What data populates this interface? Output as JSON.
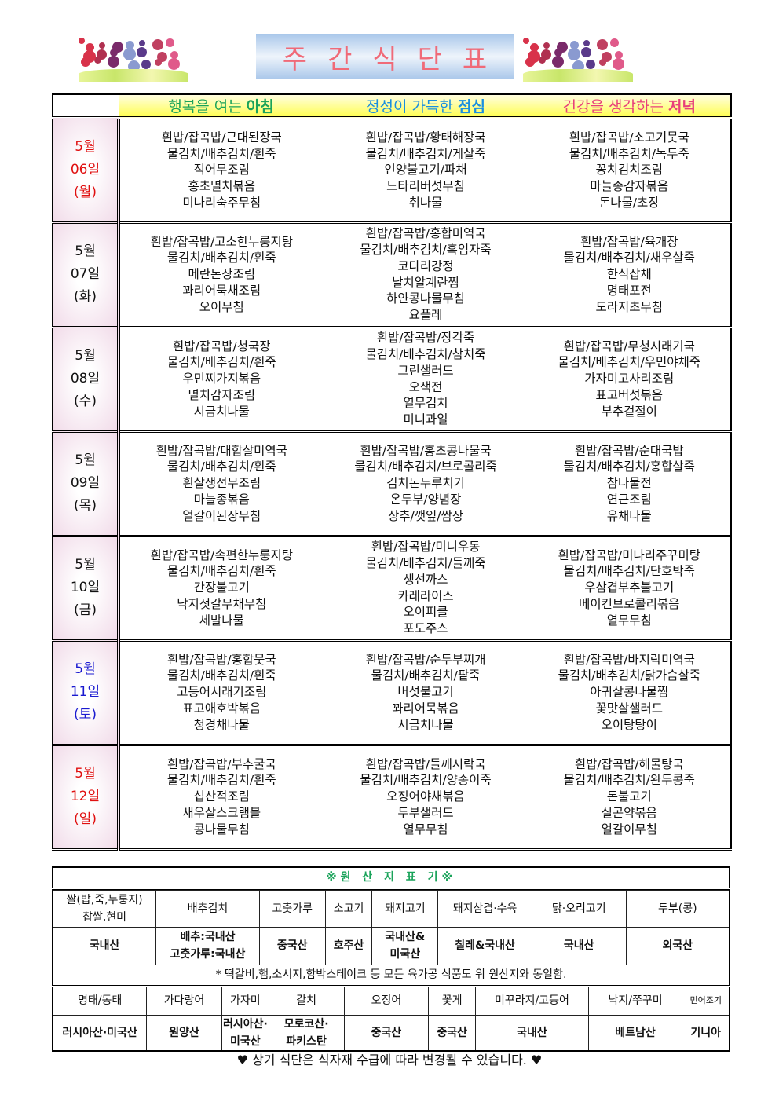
{
  "title": "주간식단표",
  "title_chars": [
    "주",
    "간",
    "식",
    "단",
    "표"
  ],
  "meals": [
    {
      "prefix": "행복을 여는 ",
      "bold": "아침",
      "color": "#1aa35a"
    },
    {
      "prefix": "정성이 가득한 ",
      "bold": "점심",
      "color": "#1a8fe0"
    },
    {
      "prefix": "건강을 생각하는 ",
      "bold": "저녁",
      "color": "#e8407a"
    }
  ],
  "days": [
    {
      "month": "5월",
      "date": "06일",
      "weekday": "(월)",
      "color": "#e01010",
      "meals": [
        [
          "흰밥/잡곡밥/근대된장국",
          "물김치/배추김치/흰죽",
          "적어무조림",
          "홍초멸치볶음",
          "미나리숙주무침"
        ],
        [
          "흰밥/잡곡밥/황태해장국",
          "물김치/배추김치/게살죽",
          "언양불고기/파채",
          "느타리버섯무침",
          "취나물"
        ],
        [
          "흰밥/잡곡밥/소고기뭇국",
          "물김치/배추김치/녹두죽",
          "꽁치김치조림",
          "마늘종감자볶음",
          "돈나물/초장"
        ]
      ]
    },
    {
      "month": "5월",
      "date": "07일",
      "weekday": "(화)",
      "color": "#111111",
      "meals": [
        [
          "흰밥/잡곡밥/고소한누룽지탕",
          "물김치/배추김치/흰죽",
          "메란돈장조림",
          "꽈리어묵채조림",
          "오이무침"
        ],
        [
          "흰밥/잡곡밥/홍합미역국",
          "물김치/배추김치/흑임자죽",
          "코다리강정",
          "날치알계란찜",
          "하얀콩나물무침",
          "요플레"
        ],
        [
          "흰밥/잡곡밥/육개장",
          "물김치/배추김치/새우살죽",
          "한식잡채",
          "명태포전",
          "도라지초무침"
        ]
      ]
    },
    {
      "month": "5월",
      "date": "08일",
      "weekday": "(수)",
      "color": "#111111",
      "meals": [
        [
          "흰밥/잡곡밥/청국장",
          "물김치/배추김치/흰죽",
          "우민찌가지볶음",
          "멸치감자조림",
          "시금치나물"
        ],
        [
          "흰밥/잡곡밥/장각죽",
          "물김치/배추김치/참치죽",
          "그린샐러드",
          "오색전",
          "열무김치",
          "미니과일"
        ],
        [
          "흰밥/잡곡밥/무청시래기국",
          "물김치/배추김치/우민야채죽",
          "가자미고사리조림",
          "표고버섯볶음",
          "부추겉절이"
        ]
      ]
    },
    {
      "month": "5월",
      "date": "09일",
      "weekday": "(목)",
      "color": "#111111",
      "meals": [
        [
          "흰밥/잡곡밥/대합살미역국",
          "물김치/배추김치/흰죽",
          "흰살생선무조림",
          "마늘종볶음",
          "얼갈이된장무침"
        ],
        [
          "흰밥/잡곡밥/홍초콩나물국",
          "물김치/배추김치/브로콜리죽",
          "김치돈두루치기",
          "온두부/양념장",
          "상추/깻잎/쌈장"
        ],
        [
          "흰밥/잡곡밥/순대국밥",
          "물김치/배추김치/홍합살죽",
          "참나물전",
          "연근조림",
          "유채나물"
        ]
      ]
    },
    {
      "month": "5월",
      "date": "10일",
      "weekday": "(금)",
      "color": "#111111",
      "meals": [
        [
          "흰밥/잡곡밥/속편한누룽지탕",
          "물김치/배추김치/흰죽",
          "간장불고기",
          "낙지젓갈무채무침",
          "세발나물"
        ],
        [
          "흰밥/잡곡밥/미니우동",
          "물김치/배추김치/들깨죽",
          "생선까스",
          "카레라이스",
          "오이피클",
          "포도주스"
        ],
        [
          "흰밥/잡곡밥/미나리주꾸미탕",
          "물김치/배추김치/단호박죽",
          "우삼겹부추불고기",
          "베이컨브로콜리볶음",
          "열무무침"
        ]
      ]
    },
    {
      "month": "5월",
      "date": "11일",
      "weekday": "(토)",
      "color": "#1a1ad0",
      "meals": [
        [
          "흰밥/잡곡밥/홍합뭇국",
          "물김치/배추김치/흰죽",
          "고등어시래기조림",
          "표고애호박볶음",
          "청경채나물"
        ],
        [
          "흰밥/잡곡밥/순두부찌개",
          "물김치/배추김치/팥죽",
          "버섯불고기",
          "꽈리어묵볶음",
          "시금치나물"
        ],
        [
          "흰밥/잡곡밥/바지락미역국",
          "물김치/배추김치/닭가슴살죽",
          "아귀살콩나물찜",
          "꽃맛살샐러드",
          "오이탕탕이"
        ]
      ]
    },
    {
      "month": "5월",
      "date": "12일",
      "weekday": "(일)",
      "color": "#e01010",
      "meals": [
        [
          "흰밥/잡곡밥/부추굴국",
          "물김치/배추김치/흰죽",
          "섭산적조림",
          "새우살스크램블",
          "콩나물무침"
        ],
        [
          "흰밥/잡곡밥/들깨시락국",
          "물김치/배추김치/양송이죽",
          "오징어야채볶음",
          "두부샐러드",
          "열무무침"
        ],
        [
          "흰밥/잡곡밥/해물탕국",
          "물김치/배추김치/완두콩죽",
          "돈불고기",
          "실곤약볶음",
          "얼갈이무침"
        ]
      ]
    }
  ],
  "origin": {
    "title": "※원 산 지 표 기※",
    "title_color": "#1aa35a",
    "row1_items": [
      "쌀(밥,죽,누룽지)\n찹쌀,현미",
      "배추김치",
      "고춧가루",
      "소고기",
      "돼지고기",
      "돼지삼겹·수육",
      "닭·오리고기",
      "두부(콩)"
    ],
    "row1_origins": [
      "국내산",
      "배추:국내산\n고춧가루:국내산",
      "중국산",
      "호주산",
      "국내산&\n미국산",
      "칠레&국내산",
      "국내산",
      "외국산"
    ],
    "note": "* 떡갈비,햄,소시지,함박스테이크 등 모든 육가공 식품도 위 원산지와 동일함.",
    "row2_items": [
      "명태/동태",
      "가다랑어",
      "가자미",
      "갈치",
      "오징어",
      "꽃게",
      "미꾸라지/고등어",
      "낙지/쭈꾸미",
      "민어조기"
    ],
    "row2_origins": [
      "러시아산·미국산",
      "원양산",
      "러시아산·\n미국산",
      "모로코산·\n파키스탄",
      "중국산",
      "중국산",
      "국내산",
      "베트남산",
      "기니아"
    ]
  },
  "footer": "♥ 상기 식단은 식자재 수급에 따라 변경될 수 있습니다. ♥"
}
